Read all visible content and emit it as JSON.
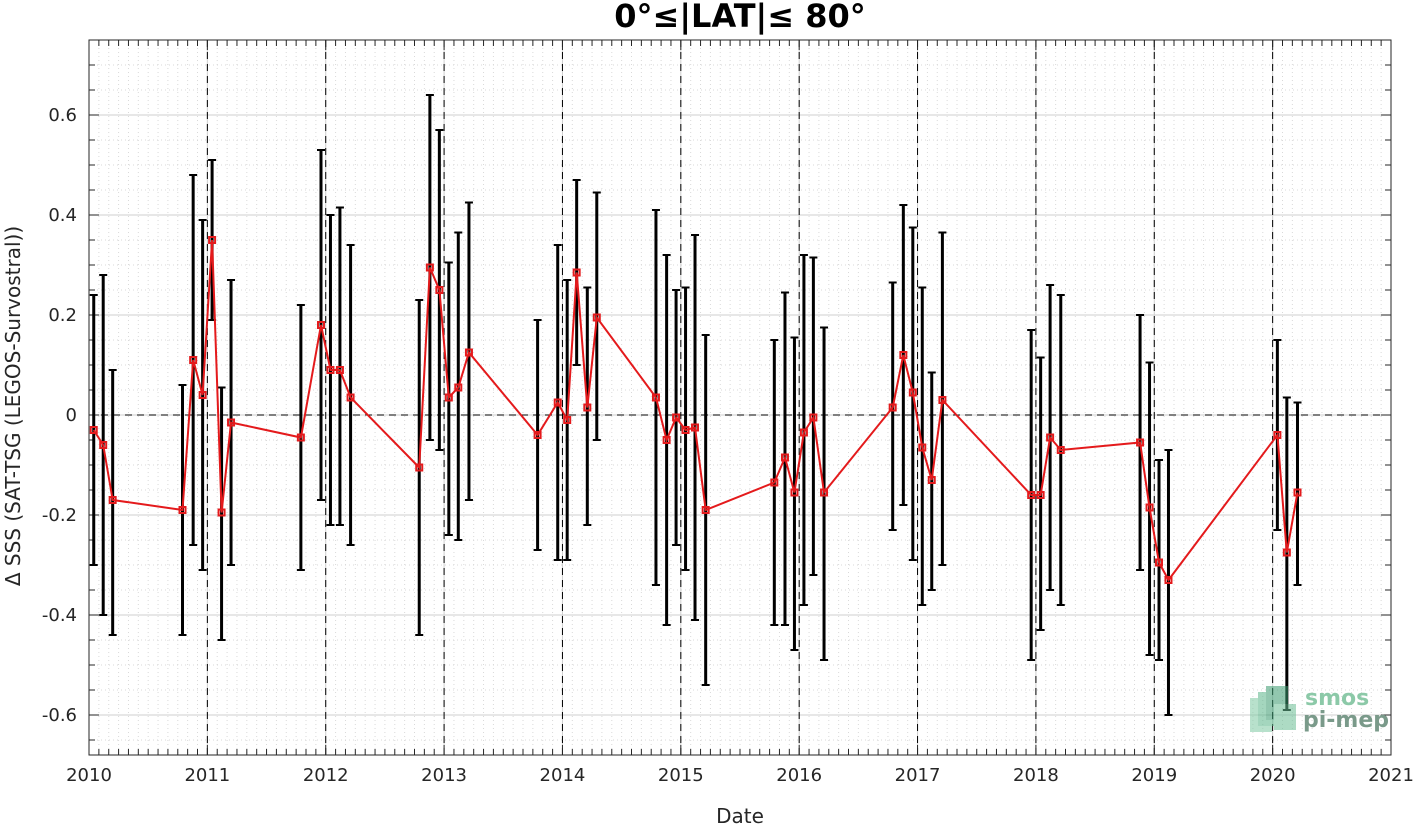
{
  "chart_data": {
    "type": "line",
    "title": "0°≤|LAT|≤ 80°",
    "xlabel": "Date",
    "ylabel": "Δ SSS (SAT-TSG (LEGOS-Survostral))",
    "xlim": [
      2010,
      2021
    ],
    "ylim": [
      -0.68,
      0.75
    ],
    "xticks": [
      2010,
      2011,
      2012,
      2013,
      2014,
      2015,
      2016,
      2017,
      2018,
      2019,
      2020,
      2021
    ],
    "yticks": [
      -0.6,
      -0.4,
      -0.2,
      0,
      0.2,
      0.4,
      0.6
    ],
    "ytick_labels": [
      "-0.6",
      "-0.4",
      "-0.2",
      "0",
      "0.2",
      "0.4",
      "0.6"
    ],
    "grid": true,
    "vertical_dashed_lines_at": [
      2011,
      2012,
      2013,
      2014,
      2015,
      2016,
      2017,
      2018,
      2019,
      2020
    ],
    "zero_line": 0,
    "colors": {
      "series": "#e41a1c",
      "errorbars": "#000000",
      "grid": "#d9d9d9"
    },
    "series": [
      {
        "x": [
          2010.04,
          2010.12,
          2010.2,
          2010.79,
          2010.88,
          2010.96,
          2011.04,
          2011.12,
          2011.2,
          2011.79,
          2011.96,
          2012.04,
          2012.12,
          2012.21,
          2012.79,
          2012.88,
          2012.96,
          2013.04,
          2013.12,
          2013.21,
          2013.79,
          2013.96,
          2014.04,
          2014.12,
          2014.21,
          2014.29,
          2014.79,
          2014.88,
          2014.96,
          2015.04,
          2015.12,
          2015.21,
          2015.79,
          2015.88,
          2015.96,
          2016.04,
          2016.12,
          2016.21,
          2016.79,
          2016.88,
          2016.96,
          2017.04,
          2017.12,
          2017.21,
          2017.96,
          2018.04,
          2018.12,
          2018.21,
          2018.88,
          2018.96,
          2019.04,
          2019.12,
          2020.04,
          2020.12,
          2020.21
        ],
        "y": [
          -0.03,
          -0.06,
          -0.17,
          -0.19,
          0.11,
          0.04,
          0.35,
          -0.195,
          -0.015,
          -0.045,
          0.18,
          0.09,
          0.09,
          0.035,
          -0.105,
          0.295,
          0.25,
          0.035,
          0.055,
          0.125,
          -0.04,
          0.025,
          -0.01,
          0.285,
          0.015,
          0.195,
          0.035,
          -0.05,
          -0.005,
          -0.03,
          -0.025,
          -0.19,
          -0.135,
          -0.085,
          -0.155,
          -0.035,
          -0.005,
          -0.155,
          0.015,
          0.12,
          0.045,
          -0.065,
          -0.13,
          0.03,
          -0.16,
          -0.16,
          -0.045,
          -0.07,
          -0.055,
          -0.185,
          -0.295,
          -0.33,
          -0.04,
          -0.275,
          -0.155
        ],
        "err_low": [
          -0.3,
          -0.4,
          -0.44,
          -0.44,
          -0.26,
          -0.31,
          0.19,
          -0.45,
          -0.3,
          -0.31,
          -0.17,
          -0.22,
          -0.22,
          -0.26,
          -0.44,
          -0.05,
          -0.07,
          -0.24,
          -0.25,
          -0.17,
          -0.27,
          -0.29,
          -0.29,
          0.1,
          -0.22,
          -0.05,
          -0.34,
          -0.42,
          -0.26,
          -0.31,
          -0.41,
          -0.54,
          -0.42,
          -0.42,
          -0.47,
          -0.38,
          -0.32,
          -0.49,
          -0.23,
          -0.18,
          -0.29,
          -0.38,
          -0.35,
          -0.3,
          -0.49,
          -0.43,
          -0.35,
          -0.38,
          -0.31,
          -0.48,
          -0.49,
          -0.6,
          -0.23,
          -0.59,
          -0.34
        ],
        "err_high": [
          0.24,
          0.28,
          0.09,
          0.06,
          0.48,
          0.39,
          0.51,
          0.055,
          0.27,
          0.22,
          0.53,
          0.4,
          0.415,
          0.34,
          0.23,
          0.64,
          0.57,
          0.305,
          0.365,
          0.425,
          0.19,
          0.34,
          0.27,
          0.47,
          0.255,
          0.445,
          0.41,
          0.32,
          0.25,
          0.255,
          0.36,
          0.16,
          0.15,
          0.245,
          0.155,
          0.32,
          0.315,
          0.175,
          0.265,
          0.42,
          0.375,
          0.255,
          0.085,
          0.365,
          0.17,
          0.115,
          0.26,
          0.24,
          0.2,
          0.105,
          -0.09,
          -0.07,
          0.15,
          0.035,
          0.025
        ]
      }
    ]
  },
  "logo": {
    "line1": "smos",
    "line2": "pi-mep"
  }
}
